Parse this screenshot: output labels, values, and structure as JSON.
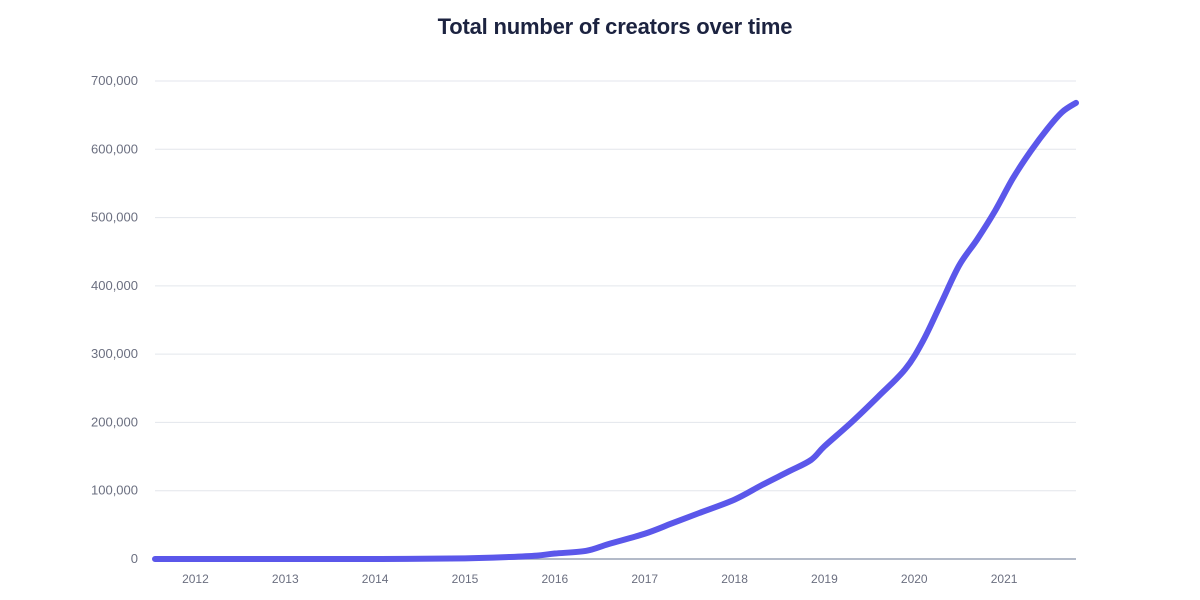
{
  "chart_data": {
    "type": "line",
    "title": "Total number of creators over time",
    "xlabel": "",
    "ylabel": "",
    "xlim": [
      2011.55,
      2021.8
    ],
    "ylim": [
      0,
      700000
    ],
    "grid": true,
    "legend": "none",
    "yticks": [
      0,
      100000,
      200000,
      300000,
      400000,
      500000,
      600000,
      700000
    ],
    "ytick_labels": [
      "0",
      "100,000",
      "200,000",
      "300,000",
      "400,000",
      "500,000",
      "600,000",
      "700,000"
    ],
    "xticks": [
      2012,
      2013,
      2014,
      2015,
      2016,
      2017,
      2018,
      2019,
      2020,
      2021
    ],
    "xtick_labels": [
      "2012",
      "2013",
      "2014",
      "2015",
      "2016",
      "2017",
      "2018",
      "2019",
      "2020",
      "2021"
    ],
    "series": [
      {
        "color": "#5b57ea",
        "x": [
          2011.55,
          2012.0,
          2013.0,
          2014.0,
          2015.0,
          2015.5,
          2015.8,
          2016.0,
          2016.35,
          2016.6,
          2017.0,
          2017.3,
          2017.6,
          2018.0,
          2018.3,
          2018.6,
          2018.85,
          2019.0,
          2019.3,
          2019.6,
          2019.9,
          2020.1,
          2020.3,
          2020.5,
          2020.7,
          2020.9,
          2021.1,
          2021.3,
          2021.5,
          2021.65,
          2021.8
        ],
        "y": [
          0,
          0,
          0,
          0,
          1000,
          3000,
          5000,
          8000,
          12000,
          22000,
          37000,
          52000,
          67000,
          87000,
          108000,
          128000,
          145000,
          165000,
          200000,
          238000,
          278000,
          320000,
          375000,
          430000,
          468000,
          510000,
          558000,
          598000,
          633000,
          655000,
          668000
        ]
      }
    ]
  }
}
